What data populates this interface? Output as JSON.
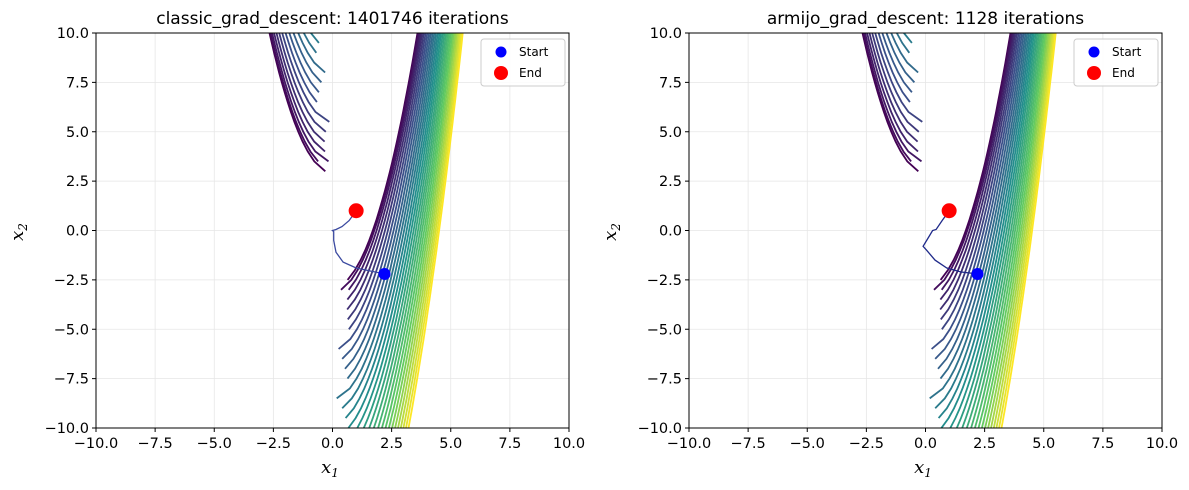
{
  "chart_data": [
    {
      "type": "line",
      "title": "classic_grad_descent: 1401746 iterations",
      "xlabel": "x",
      "xlabel_sub": "1",
      "ylabel": "x",
      "ylabel_sub": "2",
      "xlim": [
        -10,
        10
      ],
      "ylim": [
        -10,
        10
      ],
      "xticks": [
        "−10.0",
        "−7.5",
        "−5.0",
        "−2.5",
        "0.0",
        "2.5",
        "5.0",
        "7.5",
        "10.0"
      ],
      "yticks": [
        "−10.0",
        "−7.5",
        "−5.0",
        "−2.5",
        "0.0",
        "2.5",
        "5.0",
        "7.5",
        "10.0"
      ],
      "grid": true,
      "legend_position": "top-right",
      "background": "contour",
      "series": [
        {
          "name": "path",
          "color": "#3b4aa0",
          "x": [
            2.2,
            1.6,
            1.0,
            0.45,
            0.15,
            0.05,
            0.05,
            0.0,
            0.15,
            0.4,
            0.7,
            1.0
          ],
          "y": [
            -2.2,
            -2.05,
            -1.9,
            -1.6,
            -1.1,
            -0.5,
            -0.05,
            0.0,
            0.05,
            0.2,
            0.5,
            1.0
          ]
        },
        {
          "name": "Start",
          "type": "point",
          "color": "#0000ff",
          "x": 2.2,
          "y": -2.2
        },
        {
          "name": "End",
          "type": "point",
          "color": "#ff0000",
          "x": 1.0,
          "y": 1.0
        }
      ]
    },
    {
      "type": "line",
      "title": "armijo_grad_descent: 1128 iterations",
      "xlabel": "x",
      "xlabel_sub": "1",
      "ylabel": "x",
      "ylabel_sub": "2",
      "xlim": [
        -10,
        10
      ],
      "ylim": [
        -10,
        10
      ],
      "xticks": [
        "−10.0",
        "−7.5",
        "−5.0",
        "−2.5",
        "0.0",
        "2.5",
        "5.0",
        "7.5",
        "10.0"
      ],
      "yticks": [
        "−10.0",
        "−7.5",
        "−5.0",
        "−2.5",
        "0.0",
        "2.5",
        "5.0",
        "7.5",
        "10.0"
      ],
      "grid": true,
      "legend_position": "top-right",
      "background": "contour",
      "series": [
        {
          "name": "path",
          "color": "#1f2a8a",
          "x": [
            2.2,
            1.5,
            0.9,
            0.4,
            0.05,
            -0.1,
            0.1,
            0.3,
            0.45,
            0.7,
            1.0
          ],
          "y": [
            -2.2,
            -2.1,
            -1.9,
            -1.5,
            -1.0,
            -0.8,
            -0.4,
            0.0,
            0.05,
            0.5,
            1.0
          ]
        },
        {
          "name": "Start",
          "type": "point",
          "color": "#0000ff",
          "x": 2.2,
          "y": -2.2
        },
        {
          "name": "End",
          "type": "point",
          "color": "#ff0000",
          "x": 1.0,
          "y": 1.0
        }
      ]
    }
  ]
}
